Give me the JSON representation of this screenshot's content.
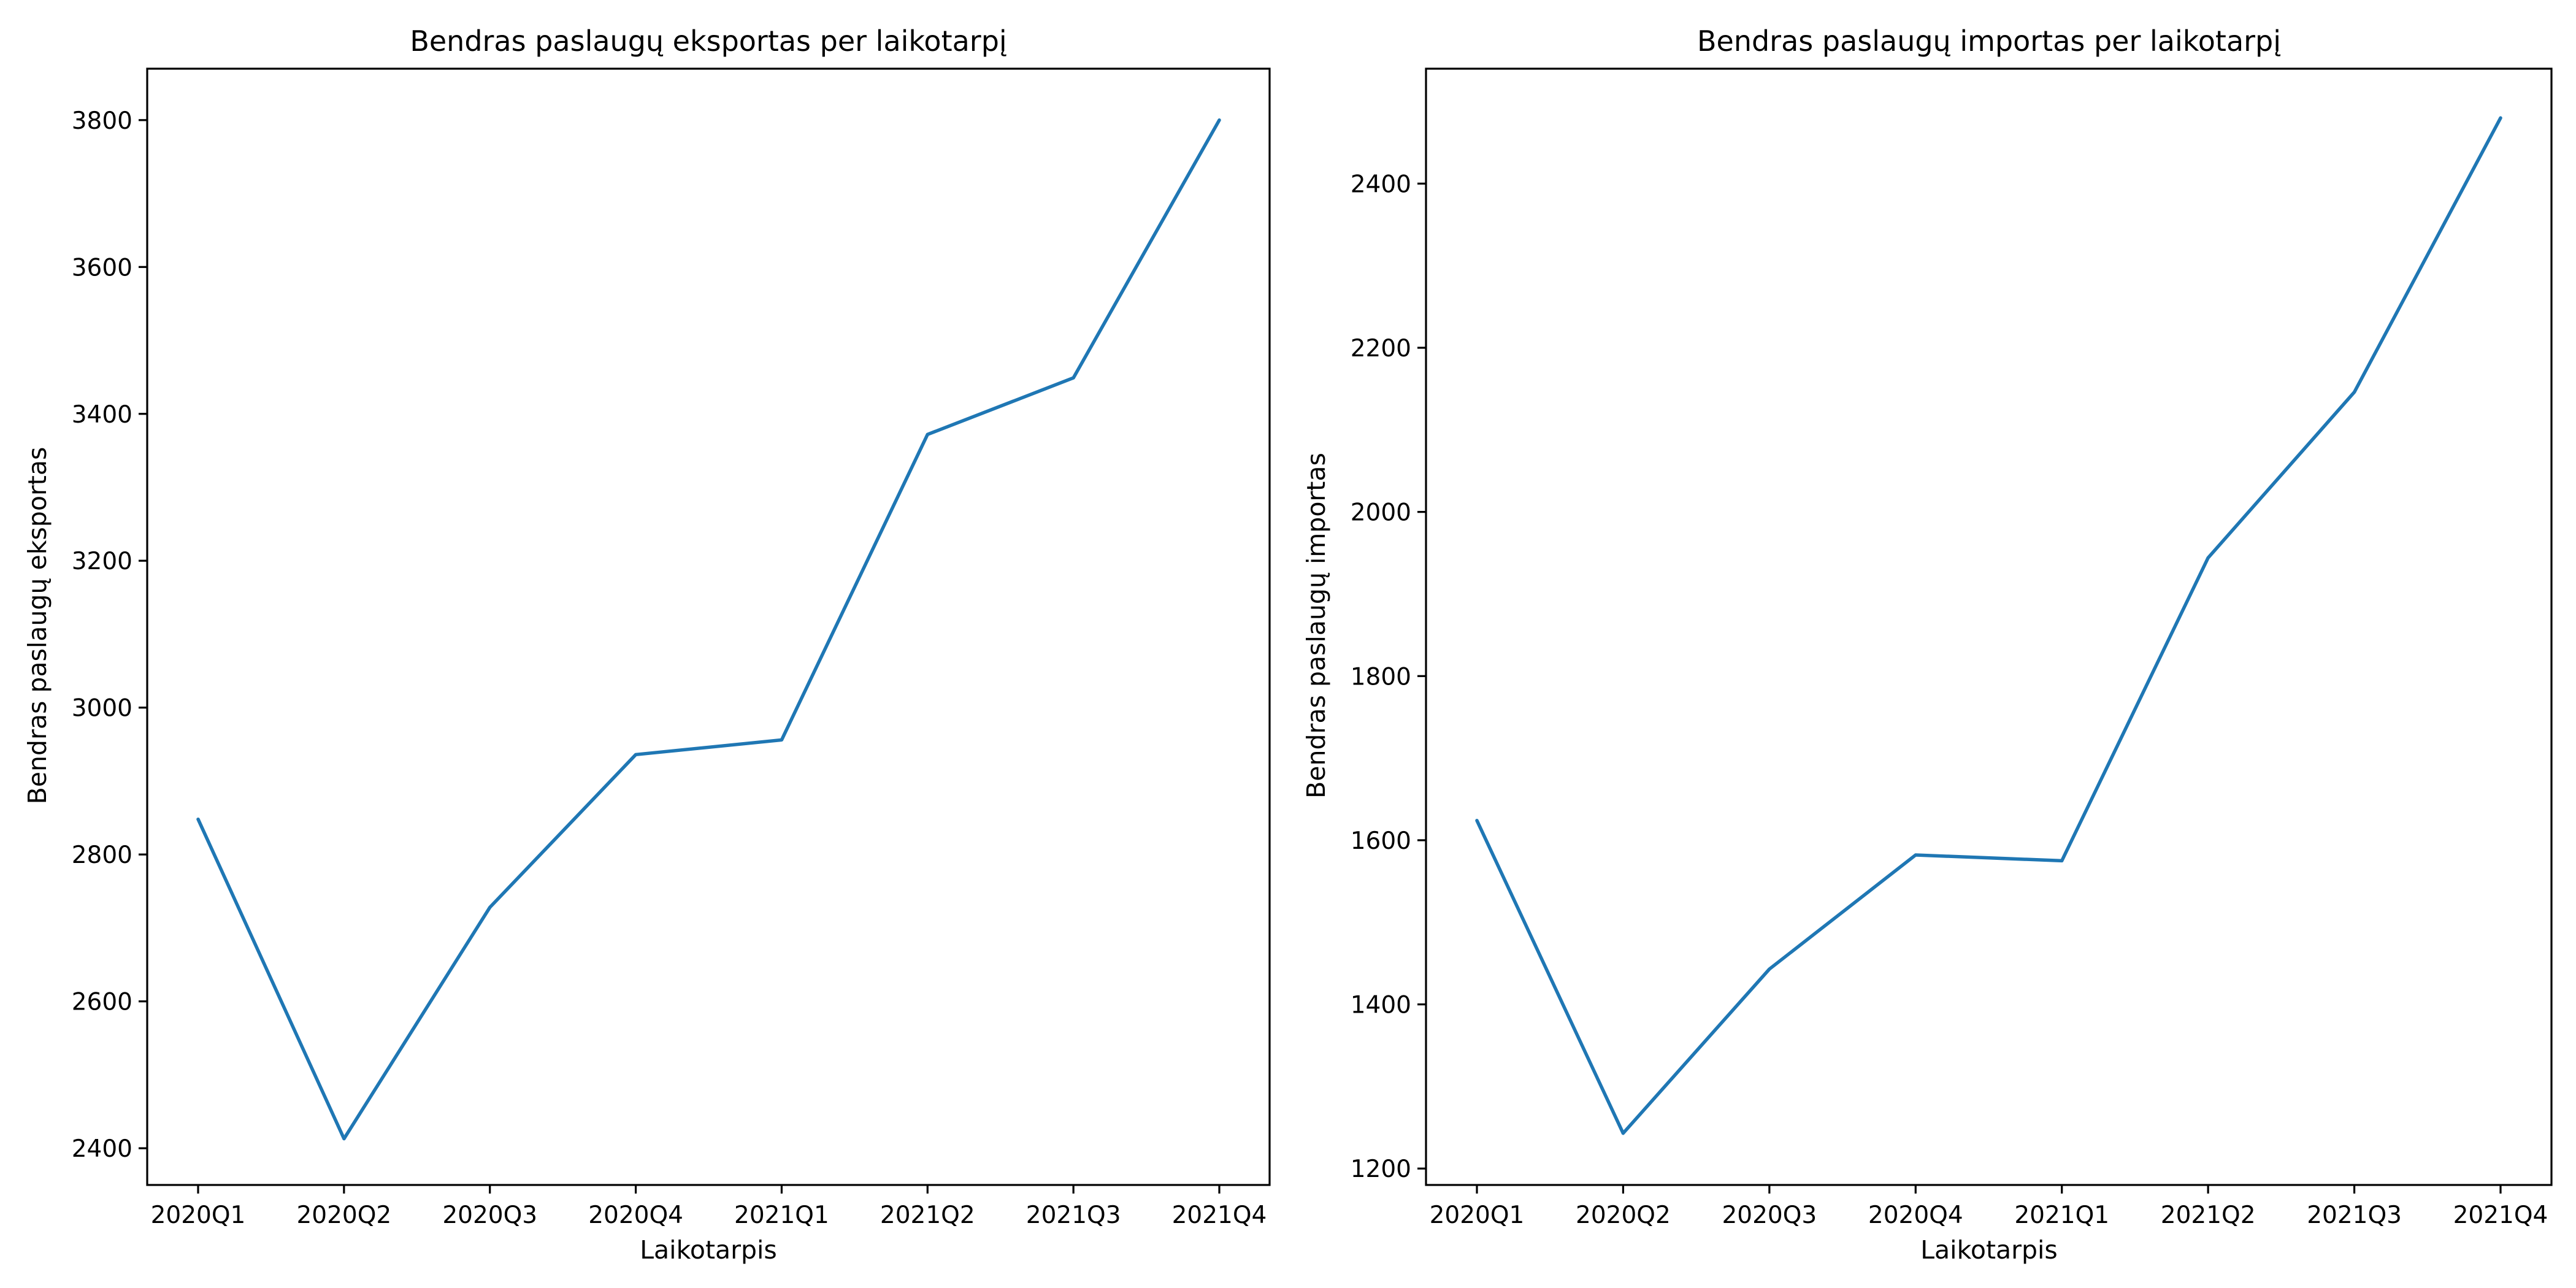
{
  "colors": {
    "series": "#1f77b4",
    "axes": "#000000",
    "background": "#ffffff"
  },
  "chart_data": [
    {
      "type": "line",
      "title": "Bendras paslaugų eksportas per laikotarpį",
      "xlabel": "Laikotarpis",
      "ylabel": "Bendras paslaugų eksportas",
      "categories": [
        "2020Q1",
        "2020Q2",
        "2020Q3",
        "2020Q4",
        "2021Q1",
        "2021Q2",
        "2021Q3",
        "2021Q4"
      ],
      "values": [
        2848,
        2413,
        2728,
        2936,
        2956,
        3372,
        3449,
        3800
      ],
      "ylim": [
        2350,
        3870
      ],
      "yticks": [
        2400,
        2600,
        2800,
        3000,
        3200,
        3400,
        3600,
        3800
      ],
      "grid": false,
      "legend": "none"
    },
    {
      "type": "line",
      "title": "Bendras paslaugų importas per laikotarpį",
      "xlabel": "Laikotarpis",
      "ylabel": "Bendras paslaugų importas",
      "categories": [
        "2020Q1",
        "2020Q2",
        "2020Q3",
        "2020Q4",
        "2021Q1",
        "2021Q2",
        "2021Q3",
        "2021Q4"
      ],
      "values": [
        1624,
        1243,
        1443,
        1582,
        1575,
        1944,
        2146,
        2480
      ],
      "ylim": [
        1180,
        2540
      ],
      "yticks": [
        1200,
        1400,
        1600,
        1800,
        2000,
        2200,
        2400
      ],
      "grid": false,
      "legend": "none"
    }
  ]
}
